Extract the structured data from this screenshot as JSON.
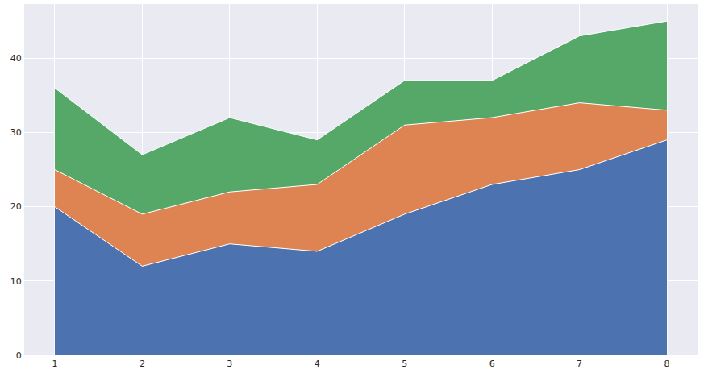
{
  "chart_data": {
    "type": "area",
    "stacked": true,
    "grid": true,
    "x": [
      1,
      2,
      3,
      4,
      5,
      6,
      7,
      8
    ],
    "series": [
      {
        "color": "#4C72B0",
        "values": [
          20,
          12,
          15,
          14,
          19,
          23,
          25,
          29
        ]
      },
      {
        "color": "#DD8452",
        "values": [
          5,
          7,
          7,
          9,
          12,
          9,
          9,
          4
        ]
      },
      {
        "color": "#55A868",
        "values": [
          11,
          8,
          10,
          6,
          6,
          5,
          9,
          12
        ]
      }
    ],
    "xlim": [
      0.65,
      8.35
    ],
    "xticks": [
      1,
      2,
      3,
      4,
      5,
      6,
      7,
      8
    ],
    "ylim": [
      0,
      47.3
    ],
    "yticks": [
      0,
      10,
      20,
      30,
      40
    ]
  }
}
